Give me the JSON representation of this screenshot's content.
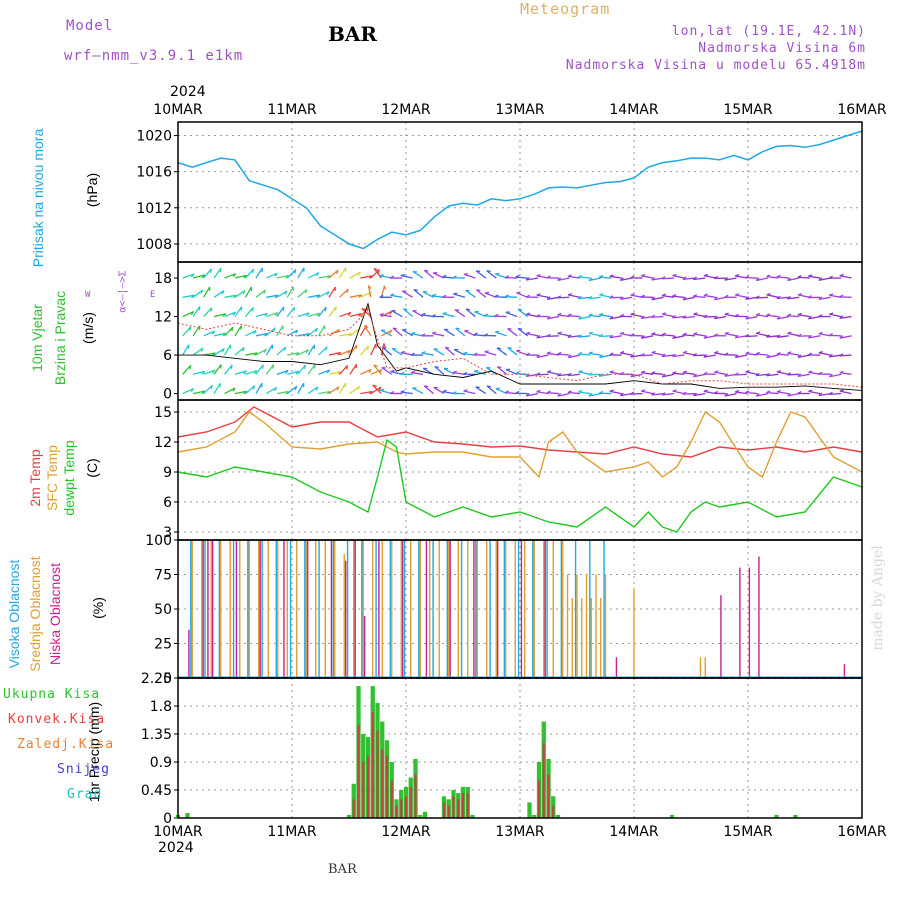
{
  "header": {
    "model_label": "Model",
    "model_name": "wrf–nmm_v3.9.1 e1km",
    "location": "BAR",
    "product": "Meteogram",
    "coords": "lon,lat (19.1E, 42.1N)",
    "elevation": "Nadmorska Visina 6m",
    "model_elevation": "Nadmorska Visina u modelu 65.4918m",
    "year_top": "2024",
    "year_bottom": "2024",
    "footer_station": "BAR",
    "credit": "made by Angel"
  },
  "panel_labels": {
    "pressure": "Pritisak na nivou mora",
    "pressure_unit": "(hPa)",
    "wind_a": "10m Vjetar",
    "wind_b": "Brzina i Pravac",
    "wind_unit": "(m/s)",
    "compass": "α<–|–>Σ",
    "compass_w": "W",
    "compass_e": "E",
    "t2m": "2m Temp",
    "tsfc": "SFC Temp",
    "tdew": "dewpt Temp",
    "temp_unit": "(C)",
    "cloud_high": "Visoka Oblacnost",
    "cloud_mid": "Srednja Oblacnost",
    "cloud_low": "Niska Oblacnost",
    "cloud_unit": "(%)",
    "precip_unit": "1hr Precip (mm)"
  },
  "precip_legend": [
    "Ukupna Kisa",
    "Konvek.Kisa",
    "Zaledj.Kisa",
    "Snijeg",
    "Grad"
  ],
  "colors": {
    "pressure": "#1ea8e8",
    "t2m": "#e84040",
    "tsfc": "#e0a030",
    "tdew": "#20c820",
    "cloud_high": "#20a8e8",
    "cloud_mid": "#e0a030",
    "cloud_low": "#c8208c",
    "precip_total": "#30c030",
    "precip_conv": "#c84040",
    "precip_frz": "#e88030",
    "precip_snow": "#4040d0",
    "precip_hail": "#20c0c0",
    "header_purple": "#a050c8",
    "header_orange": "#e0b060"
  },
  "chart_data": [
    {
      "type": "line",
      "name": "pressure",
      "x_ticks": [
        "10MAR",
        "11MAR",
        "12MAR",
        "13MAR",
        "14MAR",
        "15MAR",
        "16MAR"
      ],
      "y_ticks": [
        "1008",
        "1012",
        "1016",
        "1020"
      ],
      "ylim": [
        1006,
        1021.5
      ],
      "x_hours": [
        0,
        3,
        6,
        9,
        12,
        15,
        18,
        21,
        24,
        27,
        30,
        33,
        36,
        39,
        42,
        45,
        48,
        51,
        54,
        57,
        60,
        63,
        66,
        69,
        72,
        75,
        78,
        81,
        84,
        87,
        90,
        93,
        96,
        99,
        102,
        105,
        108,
        111,
        114,
        117,
        120,
        123,
        126,
        129,
        132,
        135,
        138,
        141,
        144
      ],
      "values": [
        1017,
        1016.5,
        1017,
        1017.5,
        1017.3,
        1015,
        1014.5,
        1014,
        1013,
        1012,
        1010,
        1009,
        1008,
        1007.5,
        1008.5,
        1009.3,
        1009,
        1009.5,
        1011,
        1012.2,
        1012.5,
        1012.3,
        1013,
        1012.8,
        1013,
        1013.5,
        1014.2,
        1014.3,
        1014.2,
        1014.5,
        1014.8,
        1014.9,
        1015.3,
        1016.5,
        1017,
        1017.2,
        1017.5,
        1017.5,
        1017.3,
        1017.8,
        1017.3,
        1018.2,
        1018.8,
        1018.9,
        1018.7,
        1019,
        1019.5,
        1020,
        1020.5
      ]
    },
    {
      "type": "barbs",
      "name": "10m wind",
      "y_ticks": [
        "0",
        "6",
        "12",
        "18"
      ],
      "ylim": [
        -1,
        20.5
      ],
      "speed_hours": [
        0,
        6,
        12,
        18,
        24,
        30,
        36,
        40,
        42,
        46,
        48,
        54,
        60,
        66,
        72,
        78,
        84,
        90,
        96,
        102,
        108,
        114,
        120,
        126,
        132,
        138,
        144
      ],
      "speed_values": [
        6,
        6,
        5.5,
        5,
        5,
        4.5,
        5.5,
        14,
        7.5,
        3.5,
        4,
        3,
        2.5,
        3.5,
        1.5,
        1.5,
        1.5,
        1.5,
        2,
        1.5,
        1.5,
        0.8,
        1,
        1,
        1.2,
        0.8,
        0.5
      ],
      "gust_hours": [
        0,
        6,
        12,
        18,
        24,
        30,
        36,
        40,
        44,
        48,
        54,
        60,
        66,
        72,
        78,
        84,
        90,
        96,
        102,
        108,
        114,
        120,
        126,
        132,
        138,
        144
      ],
      "gust_values": [
        11,
        10,
        11,
        10,
        9,
        9,
        10,
        13,
        4,
        4,
        5,
        5.5,
        3,
        3,
        2.5,
        2,
        3,
        3,
        1.5,
        2,
        2,
        1.5,
        1.5,
        1.5,
        1.5,
        1
      ]
    },
    {
      "type": "line",
      "name": "temperature",
      "y_ticks": [
        "3",
        "6",
        "9",
        "12",
        "15"
      ],
      "ylim": [
        2.2,
        16.2
      ],
      "series": [
        {
          "name": "2m Temp",
          "color_key": "t2m",
          "x": [
            0,
            6,
            12,
            16,
            18,
            24,
            30,
            36,
            42,
            48,
            54,
            60,
            66,
            72,
            78,
            84,
            90,
            96,
            102,
            108,
            114,
            120,
            126,
            132,
            138,
            144
          ],
          "values": [
            12.5,
            13,
            14,
            15.5,
            15,
            13.5,
            14,
            14,
            12.5,
            13,
            12,
            11.8,
            11.5,
            11.6,
            11.2,
            11,
            10.8,
            11.5,
            10.8,
            10.5,
            11.5,
            11.2,
            11.5,
            11,
            11.5,
            11
          ]
        },
        {
          "name": "SFC Temp",
          "color_key": "tsfc",
          "x": [
            0,
            6,
            12,
            15,
            18,
            24,
            30,
            36,
            42,
            46,
            48,
            54,
            60,
            66,
            72,
            76,
            78,
            81,
            84,
            90,
            96,
            99,
            102,
            105,
            108,
            111,
            114,
            120,
            123,
            126,
            129,
            132,
            138,
            144
          ],
          "values": [
            11,
            11.5,
            13,
            15,
            14,
            11.5,
            11.3,
            11.8,
            12,
            11,
            10.8,
            11,
            11,
            10.5,
            10.5,
            8.5,
            12,
            13,
            11,
            9,
            9.5,
            10,
            8.5,
            9.5,
            12,
            15,
            14,
            9.5,
            8.5,
            12,
            15,
            14.5,
            10.5,
            9
          ]
        },
        {
          "name": "dewpt Temp",
          "color_key": "tdew",
          "x": [
            0,
            6,
            12,
            18,
            24,
            30,
            36,
            40,
            42,
            44,
            46,
            48,
            54,
            60,
            66,
            72,
            78,
            84,
            90,
            96,
            99,
            102,
            105,
            108,
            111,
            114,
            120,
            126,
            132,
            138,
            144
          ],
          "values": [
            9,
            8.5,
            9.5,
            9,
            8.5,
            7,
            6,
            5,
            8.5,
            12.2,
            11.5,
            6,
            4.5,
            5.5,
            4.5,
            5,
            4,
            3.5,
            5.5,
            3.5,
            5,
            3.5,
            3,
            5,
            6,
            5.5,
            6,
            4.5,
            5,
            8.5,
            7.5
          ]
        }
      ]
    },
    {
      "type": "bar",
      "name": "cloudiness",
      "y_ticks": [
        "0",
        "25",
        "50",
        "75",
        "100"
      ],
      "ylim": [
        0,
        100
      ]
    },
    {
      "type": "bar",
      "name": "1hr precip",
      "y_ticks": [
        "0",
        "0.45",
        "0.9",
        "1.35",
        "1.8",
        "2.25"
      ],
      "ylim": [
        0,
        2.25
      ],
      "total_hours": [
        0,
        2,
        36,
        37,
        38,
        39,
        40,
        41,
        42,
        43,
        44,
        45,
        46,
        47,
        48,
        49,
        50,
        51,
        52,
        56,
        57,
        58,
        59,
        60,
        61,
        62,
        74,
        75,
        76,
        77,
        78,
        79,
        80,
        104,
        126,
        130
      ],
      "total_values": [
        0.05,
        0.08,
        0.05,
        0.55,
        2.12,
        1.35,
        1.3,
        2.12,
        1.85,
        1.55,
        1.25,
        0.9,
        0.3,
        0.45,
        0.5,
        0.65,
        0.95,
        0.05,
        0.1,
        0.35,
        0.3,
        0.45,
        0.4,
        0.5,
        0.5,
        0.05,
        0.25,
        0.05,
        0.9,
        1.55,
        0.95,
        0.35,
        0.05,
        0.05,
        0.05,
        0.05
      ],
      "conv_hours": [
        37,
        38,
        39,
        40,
        41,
        42,
        43,
        44,
        45,
        46,
        47,
        48,
        49,
        50,
        56,
        57,
        58,
        59,
        60,
        61,
        76,
        77,
        78,
        79
      ],
      "conv_values": [
        0.3,
        1.5,
        0.9,
        1.0,
        1.7,
        1.4,
        1.1,
        1.0,
        0.6,
        0.2,
        0.3,
        0.35,
        0.5,
        0.7,
        0.25,
        0.2,
        0.35,
        0.3,
        0.4,
        0.4,
        0.6,
        1.2,
        0.7,
        0.2
      ]
    }
  ]
}
